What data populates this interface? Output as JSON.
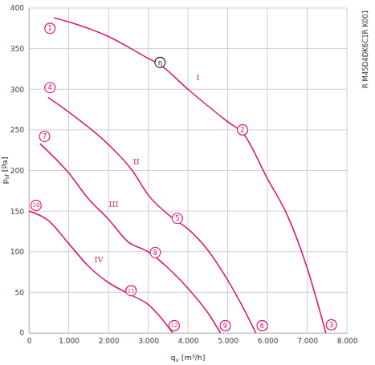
{
  "chart_data": {
    "type": "line",
    "x_label": "qv [m³/h]",
    "y_label": "psf [Pa]",
    "side_text": "R M45D4DK6C1R K001",
    "xlim": [
      0,
      8000
    ],
    "ylim": [
      0,
      400
    ],
    "xticks": [
      0,
      {
        "value": 1000,
        "label": "1.000"
      },
      {
        "value": 2000,
        "label": "2.000"
      },
      {
        "value": 3000,
        "label": "3.000"
      },
      {
        "value": 4000,
        "label": "4.000"
      },
      {
        "value": 5000,
        "label": "5.000"
      },
      {
        "value": 6000,
        "label": "6.000"
      },
      {
        "value": 7000,
        "label": "7.000"
      },
      {
        "value": 8000,
        "label": "8.000"
      }
    ],
    "yticks": [
      0,
      50,
      100,
      150,
      200,
      250,
      300,
      350,
      400
    ],
    "grid": true,
    "color": "#d81b7a",
    "series": [
      {
        "name": "I",
        "label_x": 4250,
        "label_y": 315,
        "x": [
          630,
          1000,
          2000,
          3000,
          3300,
          4000,
          5000,
          5400,
          6000,
          6500,
          7000,
          7470
        ],
        "values": [
          388,
          383,
          365,
          338,
          330,
          300,
          260,
          245,
          190,
          145,
          80,
          0
        ]
      },
      {
        "name": "II",
        "label_x": 2700,
        "label_y": 211,
        "x": [
          480,
          1000,
          2000,
          2600,
          3000,
          3600,
          4000,
          4500,
          5000,
          5400,
          5710
        ],
        "values": [
          290,
          272,
          232,
          200,
          170,
          142,
          128,
          102,
          65,
          30,
          0
        ]
      },
      {
        "name": "III",
        "label_x": 2130,
        "label_y": 159,
        "x": [
          280,
          1000,
          1500,
          2000,
          2500,
          3000,
          3500,
          4000,
          4500,
          4820
        ],
        "values": [
          233,
          197,
          165,
          140,
          112,
          100,
          80,
          55,
          25,
          0
        ]
      },
      {
        "name": "IV",
        "label_x": 1760,
        "label_y": 90,
        "x": [
          0,
          500,
          1000,
          1500,
          2000,
          2600,
          3000,
          3300,
          3615
        ],
        "values": [
          150,
          138,
          110,
          82,
          62,
          46,
          35,
          20,
          0
        ]
      }
    ],
    "annotations": [
      {
        "text": "1",
        "x": 530,
        "y": 375
      },
      {
        "text": "2",
        "x": 5375,
        "y": 250
      },
      {
        "text": "3",
        "x": 7610,
        "y": 10
      },
      {
        "text": "4",
        "x": 530,
        "y": 302
      },
      {
        "text": "5",
        "x": 3735,
        "y": 141
      },
      {
        "text": "6",
        "x": 5870,
        "y": 9
      },
      {
        "text": "7",
        "x": 395,
        "y": 242
      },
      {
        "text": "8",
        "x": 3180,
        "y": 99
      },
      {
        "text": "9",
        "x": 4940,
        "y": 9
      },
      {
        "text": "10",
        "x": 180,
        "y": 157
      },
      {
        "text": "11",
        "x": 2570,
        "y": 52
      },
      {
        "text": "12",
        "x": 3655,
        "y": 9
      },
      {
        "text": "η",
        "x": 3300,
        "y": 333
      }
    ]
  }
}
